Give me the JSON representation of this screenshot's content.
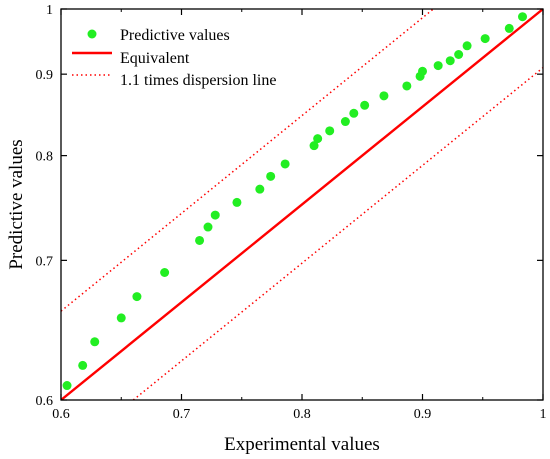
{
  "chart_data": {
    "type": "scatter",
    "xlabel": "Experimental values",
    "ylabel": "Predictive values",
    "xlim": [
      0.6,
      1
    ],
    "ylim": [
      0.6,
      1
    ],
    "y_scale": "reciprocal",
    "x_ticks": [
      "0.6",
      "0.7",
      "0.8",
      "0.9",
      "1"
    ],
    "y_ticks": [
      "0.6",
      "0.7",
      "0.8",
      "0.9",
      "1"
    ],
    "grid": false,
    "legend_position": "top-left",
    "series": [
      {
        "name": "Predictive values",
        "kind": "points",
        "color": "#22ee22",
        "x": [
          0.605,
          0.618,
          0.628,
          0.65,
          0.663,
          0.686,
          0.715,
          0.722,
          0.728,
          0.746,
          0.765,
          0.774,
          0.786,
          0.81,
          0.813,
          0.823,
          0.836,
          0.843,
          0.852,
          0.868,
          0.887,
          0.898,
          0.9,
          0.913,
          0.923,
          0.93,
          0.937,
          0.952,
          0.972,
          0.983
        ],
        "y": [
          0.609,
          0.622,
          0.638,
          0.655,
          0.671,
          0.69,
          0.717,
          0.729,
          0.74,
          0.752,
          0.765,
          0.778,
          0.791,
          0.811,
          0.819,
          0.828,
          0.839,
          0.849,
          0.859,
          0.871,
          0.884,
          0.897,
          0.904,
          0.912,
          0.919,
          0.928,
          0.941,
          0.952,
          0.968,
          0.987
        ]
      },
      {
        "name": "Equivalent",
        "kind": "line",
        "style": "solid",
        "color": "#ff0000",
        "x": [
          0.6,
          1
        ],
        "y": [
          0.6,
          1
        ]
      },
      {
        "name": "1.1 times dispersion line",
        "kind": "line",
        "style": "dotted",
        "color": "#ff0000",
        "x": [
          0.6,
          0.909
        ],
        "y": [
          0.66,
          1
        ]
      },
      {
        "name": "",
        "kind": "line",
        "style": "dotted",
        "color": "#ff0000",
        "x": [
          0.66,
          1
        ],
        "y": [
          0.6,
          0.909
        ]
      }
    ]
  }
}
